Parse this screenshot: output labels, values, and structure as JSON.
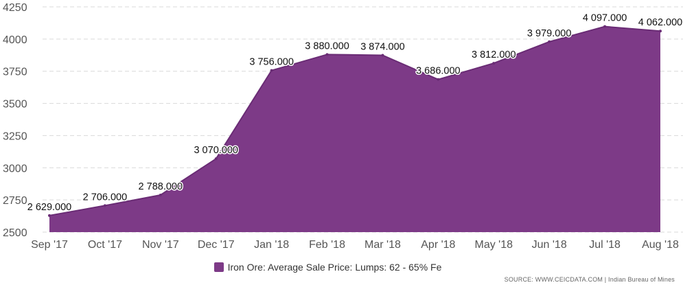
{
  "chart_data": {
    "type": "area",
    "categories": [
      "Sep '17",
      "Oct '17",
      "Nov '17",
      "Dec '17",
      "Jan '18",
      "Feb '18",
      "Mar '18",
      "Apr '18",
      "May '18",
      "Jun '18",
      "Jul '18",
      "Aug '18"
    ],
    "series": [
      {
        "name": "Iron Ore: Average Sale Price: Lumps: 62 - 65% Fe",
        "values": [
          2629,
          2706,
          2788,
          3070,
          3756,
          3880,
          3874,
          3686,
          3812,
          3979,
          4097,
          4062
        ],
        "data_labels": [
          "2 629.000",
          "2 706.000",
          "2 788.000",
          "3 070.000",
          "3 756.000",
          "3 880.000",
          "3 874.000",
          "3 686.000",
          "3 812.000",
          "3 979.000",
          "4 097.000",
          "4 062.000"
        ]
      }
    ],
    "yticks": [
      "2500",
      "2750",
      "3000",
      "3250",
      "3500",
      "3750",
      "4000",
      "4250"
    ],
    "ylim": [
      2500,
      4250
    ],
    "grid": true,
    "legend_position": "bottom-center",
    "colors": {
      "area": "#7d3a87",
      "area_edge": "#6a2c75"
    }
  },
  "source": "SOURCE: WWW.CEICDATA.COM | Indian Bureau of Mines"
}
